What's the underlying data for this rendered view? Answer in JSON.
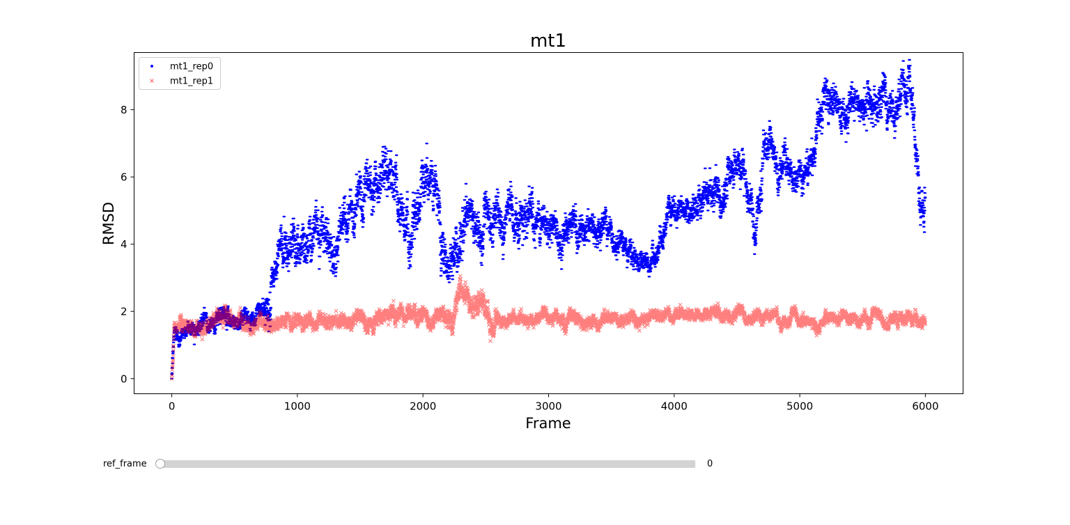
{
  "chart_data": {
    "type": "scatter",
    "title": "mt1",
    "xlabel": "Frame",
    "ylabel": "RMSD",
    "xlim": [
      -300,
      6300
    ],
    "ylim": [
      -0.45,
      9.7
    ],
    "xticks": [
      0,
      1000,
      2000,
      3000,
      4000,
      5000,
      6000
    ],
    "yticks": [
      0,
      2,
      4,
      6,
      8
    ],
    "grid": false,
    "legend": "upper-left",
    "series": [
      {
        "name": "mt1_rep0",
        "color": "#0000ff",
        "marker": "dot",
        "n_points": 6000,
        "trend": [
          [
            0,
            0.0
          ],
          [
            20,
            1.3
          ],
          [
            200,
            1.6
          ],
          [
            400,
            1.8
          ],
          [
            600,
            1.8
          ],
          [
            720,
            1.95
          ],
          [
            780,
            2.2
          ],
          [
            850,
            3.6
          ],
          [
            950,
            4.3
          ],
          [
            1050,
            4.0
          ],
          [
            1150,
            5.1
          ],
          [
            1250,
            4.1
          ],
          [
            1350,
            4.4
          ],
          [
            1450,
            5.0
          ],
          [
            1550,
            5.8
          ],
          [
            1650,
            5.9
          ],
          [
            1750,
            6.1
          ],
          [
            1820,
            4.8
          ],
          [
            1900,
            4.3
          ],
          [
            1950,
            5.2
          ],
          [
            2030,
            6.5
          ],
          [
            2100,
            5.2
          ],
          [
            2150,
            4.2
          ],
          [
            2250,
            3.6
          ],
          [
            2300,
            4.4
          ],
          [
            2500,
            4.6
          ],
          [
            2700,
            4.8
          ],
          [
            2900,
            4.6
          ],
          [
            3100,
            4.5
          ],
          [
            3300,
            4.5
          ],
          [
            3500,
            4.3
          ],
          [
            3650,
            4.0
          ],
          [
            3700,
            3.5
          ],
          [
            3800,
            3.6
          ],
          [
            3870,
            3.7
          ],
          [
            3950,
            4.6
          ],
          [
            4000,
            5.1
          ],
          [
            4200,
            5.2
          ],
          [
            4350,
            5.7
          ],
          [
            4450,
            6.2
          ],
          [
            4530,
            6.4
          ],
          [
            4580,
            5.0
          ],
          [
            4650,
            4.8
          ],
          [
            4700,
            6.1
          ],
          [
            4800,
            6.9
          ],
          [
            4950,
            6.5
          ],
          [
            5050,
            6.1
          ],
          [
            5100,
            6.9
          ],
          [
            5200,
            8.0
          ],
          [
            5300,
            7.9
          ],
          [
            5400,
            7.8
          ],
          [
            5500,
            7.9
          ],
          [
            5600,
            8.2
          ],
          [
            5700,
            8.2
          ],
          [
            5800,
            8.3
          ],
          [
            5880,
            8.4
          ],
          [
            5940,
            6.5
          ],
          [
            5960,
            5.8
          ],
          [
            6000,
            5.7
          ]
        ],
        "spread": [
          [
            0,
            0.15
          ],
          [
            700,
            0.15
          ],
          [
            800,
            0.4
          ],
          [
            2300,
            0.45
          ],
          [
            3500,
            0.25
          ],
          [
            3800,
            0.2
          ],
          [
            4500,
            0.35
          ],
          [
            5200,
            0.35
          ],
          [
            6000,
            0.4
          ]
        ]
      },
      {
        "name": "mt1_rep1",
        "color": "#ff0000",
        "marker": "x",
        "n_points": 6000,
        "trend": [
          [
            0,
            0.0
          ],
          [
            20,
            1.5
          ],
          [
            500,
            1.7
          ],
          [
            700,
            1.6
          ],
          [
            1000,
            1.7
          ],
          [
            1500,
            1.7
          ],
          [
            1800,
            1.8
          ],
          [
            2100,
            1.8
          ],
          [
            2250,
            1.9
          ],
          [
            2300,
            2.45
          ],
          [
            2500,
            2.4
          ],
          [
            2560,
            1.75
          ],
          [
            2800,
            1.7
          ],
          [
            3100,
            1.8
          ],
          [
            3500,
            1.75
          ],
          [
            4000,
            1.85
          ],
          [
            4300,
            1.9
          ],
          [
            4600,
            1.9
          ],
          [
            5000,
            1.8
          ],
          [
            5400,
            1.7
          ],
          [
            5600,
            1.75
          ],
          [
            6000,
            1.75
          ]
        ],
        "spread": [
          [
            0,
            0.13
          ],
          [
            2200,
            0.15
          ],
          [
            2300,
            0.22
          ],
          [
            2550,
            0.22
          ],
          [
            2600,
            0.11
          ],
          [
            6000,
            0.11
          ]
        ]
      }
    ]
  },
  "slider": {
    "label": "ref_frame",
    "value": "0",
    "min": 0,
    "max": 6000,
    "current": 0
  }
}
